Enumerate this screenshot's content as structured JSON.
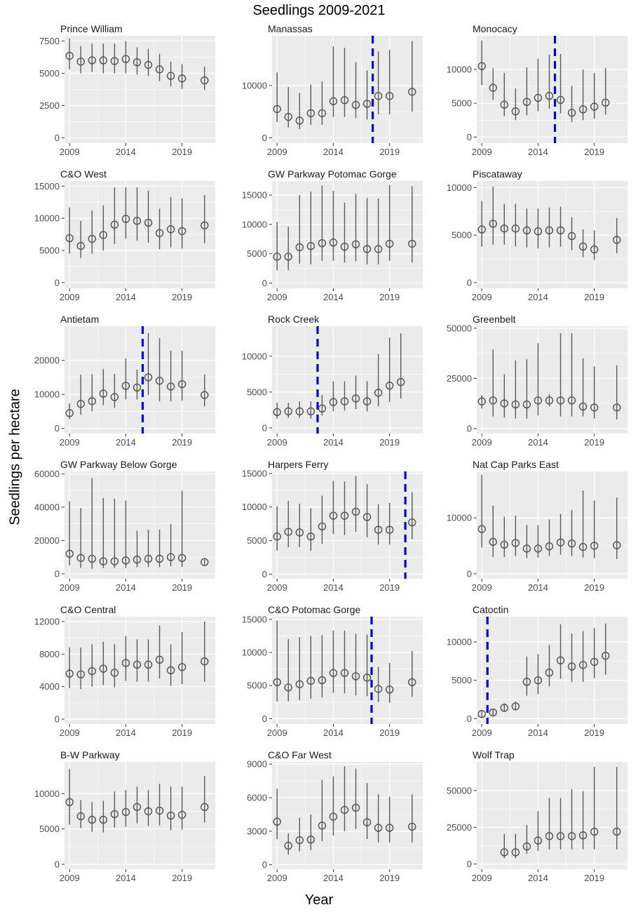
{
  "figure": {
    "title": "Seedlings 2009-2021",
    "xlabel": "Year",
    "ylabel": "Seedlings per hectare",
    "colors": {
      "panel_bg": "#ebebeb",
      "grid": "#ffffff",
      "point": "#595959",
      "cutoff_line": "#0000cc",
      "axis_text": "#4d4d4d"
    }
  },
  "chart_data": [
    {
      "type": "scatter",
      "title": "Prince William",
      "x_ticks": [
        2009,
        2014,
        2019
      ],
      "y_ticks": [
        0,
        2500,
        5000,
        7500
      ],
      "ylim": [
        -400,
        7900
      ],
      "x": [
        2009,
        2010,
        2011,
        2012,
        2013,
        2014,
        2015,
        2016,
        2017,
        2018,
        2019,
        2021
      ],
      "y": [
        6350,
        5900,
        6000,
        6000,
        5950,
        6100,
        5850,
        5650,
        5300,
        4800,
        4600,
        4450
      ],
      "lo": [
        5300,
        5000,
        5100,
        5000,
        5000,
        5000,
        4900,
        4800,
        4400,
        4000,
        3800,
        3700
      ],
      "hi": [
        7700,
        7100,
        7300,
        7300,
        7300,
        7500,
        7000,
        6900,
        6500,
        5900,
        5700,
        5500
      ]
    },
    {
      "type": "scatter",
      "title": "Manassas",
      "x_ticks": [
        2009,
        2014,
        2019
      ],
      "y_ticks": [
        0,
        10000
      ],
      "ylim": [
        -1000,
        19500
      ],
      "x": [
        2009,
        2010,
        2011,
        2012,
        2013,
        2014,
        2015,
        2016,
        2017,
        2018,
        2019,
        2021
      ],
      "y": [
        5500,
        4000,
        3300,
        4700,
        4700,
        7000,
        7200,
        6300,
        6500,
        8000,
        8000,
        8800
      ],
      "lo": [
        3000,
        2000,
        1700,
        2500,
        2500,
        4000,
        4000,
        3800,
        3500,
        4500,
        4500,
        5000
      ],
      "hi": [
        12500,
        9700,
        8600,
        10200,
        10800,
        17500,
        17200,
        14500,
        12900,
        16500,
        16800,
        18500
      ],
      "cutoff_year": 2017.5
    },
    {
      "type": "scatter",
      "title": "Monocacy",
      "x_ticks": [
        2009,
        2014,
        2019
      ],
      "y_ticks": [
        0,
        5000,
        10000
      ],
      "ylim": [
        -900,
        15000
      ],
      "x": [
        2009,
        2010,
        2011,
        2012,
        2013,
        2014,
        2015,
        2016,
        2017,
        2018,
        2019,
        2020
      ],
      "y": [
        10500,
        7300,
        4800,
        3800,
        5200,
        5800,
        6100,
        5500,
        3600,
        4100,
        4500,
        5100
      ],
      "lo": [
        7700,
        5500,
        3100,
        2500,
        3200,
        3800,
        4200,
        3500,
        2200,
        2500,
        2700,
        3300
      ],
      "hi": [
        14300,
        10200,
        9500,
        7200,
        10300,
        11600,
        12200,
        12300,
        7600,
        10000,
        9500,
        10200
      ],
      "cutoff_year": 2015.5
    },
    {
      "type": "scatter",
      "title": "C&O West",
      "x_ticks": [
        2009,
        2014,
        2019
      ],
      "y_ticks": [
        0,
        5000,
        10000,
        15000
      ],
      "ylim": [
        -900,
        15800
      ],
      "x": [
        2009,
        2010,
        2011,
        2012,
        2013,
        2014,
        2015,
        2016,
        2017,
        2018,
        2019,
        2021
      ],
      "y": [
        6900,
        5700,
        6800,
        7400,
        9000,
        9900,
        9600,
        9300,
        7700,
        8300,
        8000,
        8900
      ],
      "lo": [
        4500,
        3800,
        4500,
        5000,
        6000,
        6800,
        6500,
        6200,
        5200,
        5500,
        5300,
        6100
      ],
      "hi": [
        11700,
        9600,
        11200,
        12000,
        14800,
        14800,
        14800,
        14300,
        11500,
        13300,
        13100,
        13600
      ]
    },
    {
      "type": "scatter",
      "title": "GW Parkway Potomac Gorge",
      "x_ticks": [
        2009,
        2014,
        2019
      ],
      "y_ticks": [
        0,
        5000,
        10000,
        15000
      ],
      "ylim": [
        -900,
        17400
      ],
      "x": [
        2009,
        2010,
        2011,
        2012,
        2013,
        2014,
        2015,
        2016,
        2017,
        2018,
        2019,
        2021
      ],
      "y": [
        4500,
        4500,
        6100,
        6300,
        6800,
        6900,
        6200,
        6600,
        5800,
        5800,
        6700,
        6700
      ],
      "lo": [
        2200,
        2200,
        3300,
        3200,
        3800,
        3800,
        3500,
        3700,
        3200,
        3200,
        3800,
        3500
      ],
      "hi": [
        10400,
        9600,
        15000,
        15600,
        16600,
        15700,
        13700,
        15200,
        14500,
        14400,
        16700,
        16500
      ]
    },
    {
      "type": "scatter",
      "title": "Piscataway",
      "x_ticks": [
        2009,
        2014,
        2019
      ],
      "y_ticks": [
        0,
        5000,
        10000
      ],
      "ylim": [
        -600,
        10700
      ],
      "x": [
        2009,
        2010,
        2011,
        2012,
        2013,
        2014,
        2015,
        2016,
        2017,
        2018,
        2019,
        2021
      ],
      "y": [
        5600,
        6200,
        5700,
        5700,
        5500,
        5400,
        5500,
        5500,
        4900,
        3800,
        3500,
        4500
      ],
      "lo": [
        3800,
        4000,
        4000,
        3800,
        3700,
        3600,
        3700,
        3800,
        3400,
        2700,
        2400,
        3100
      ],
      "hi": [
        8600,
        10100,
        8300,
        8300,
        7800,
        7800,
        7900,
        8000,
        6900,
        5600,
        5500,
        6800
      ]
    },
    {
      "type": "scatter",
      "title": "Antietam",
      "x_ticks": [
        2009,
        2014,
        2019
      ],
      "y_ticks": [
        0,
        10000,
        20000
      ],
      "ylim": [
        -1500,
        30000
      ],
      "x": [
        2009,
        2010,
        2011,
        2012,
        2013,
        2014,
        2015,
        2016,
        2017,
        2018,
        2019,
        2021
      ],
      "y": [
        4500,
        7200,
        8000,
        10200,
        9200,
        12500,
        12000,
        15000,
        14000,
        12300,
        13000,
        9800
      ],
      "lo": [
        2700,
        4000,
        5000,
        6800,
        6000,
        8500,
        8500,
        9800,
        8000,
        8000,
        8200,
        6500
      ],
      "hi": [
        7300,
        15800,
        15900,
        17500,
        16000,
        20500,
        17300,
        28000,
        26500,
        22800,
        22800,
        15800
      ],
      "cutoff_year": 2015.5
    },
    {
      "type": "scatter",
      "title": "Rock Creek",
      "x_ticks": [
        2009,
        2014,
        2019
      ],
      "y_ticks": [
        0,
        5000,
        10000
      ],
      "ylim": [
        -800,
        14200
      ],
      "x": [
        2009,
        2010,
        2011,
        2012,
        2013,
        2014,
        2015,
        2016,
        2017,
        2018,
        2019,
        2020
      ],
      "y": [
        2200,
        2300,
        2300,
        2300,
        2700,
        3600,
        3700,
        4100,
        3700,
        4900,
        5900,
        6400
      ],
      "lo": [
        1300,
        1400,
        1400,
        1300,
        1700,
        2300,
        2400,
        2600,
        2300,
        3000,
        3600,
        4100
      ],
      "hi": [
        3500,
        3500,
        3700,
        3700,
        4600,
        6500,
        6500,
        7300,
        6500,
        10300,
        12600,
        13200
      ],
      "cutoff_year": 2012.6
    },
    {
      "type": "scatter",
      "title": "Greenbelt",
      "x_ticks": [
        2009,
        2014,
        2019
      ],
      "y_ticks": [
        0,
        25000,
        50000
      ],
      "ylim": [
        -2500,
        51000
      ],
      "x": [
        2009,
        2010,
        2011,
        2012,
        2013,
        2014,
        2015,
        2016,
        2017,
        2018,
        2019,
        2021
      ],
      "y": [
        13500,
        14000,
        12500,
        12000,
        12000,
        14000,
        14000,
        14000,
        14000,
        11000,
        10500,
        10500
      ],
      "lo": [
        10000,
        6000,
        5500,
        5000,
        5000,
        6500,
        11000,
        6000,
        6000,
        6000,
        5000,
        4500
      ],
      "hi": [
        16500,
        39500,
        27000,
        34000,
        34500,
        42500,
        17000,
        47500,
        47500,
        35000,
        31000,
        31500
      ]
    },
    {
      "type": "scatter",
      "title": "GW Parkway Below Gorge",
      "x_ticks": [
        2009,
        2014,
        2019
      ],
      "y_ticks": [
        0,
        20000,
        40000,
        60000
      ],
      "ylim": [
        -3000,
        61500
      ],
      "x": [
        2009,
        2010,
        2011,
        2012,
        2013,
        2014,
        2015,
        2016,
        2017,
        2018,
        2019,
        2021
      ],
      "y": [
        12000,
        9500,
        9000,
        7500,
        7500,
        8000,
        8500,
        9000,
        9000,
        10000,
        9500,
        7000
      ],
      "lo": [
        5000,
        3500,
        3000,
        3500,
        3500,
        3500,
        4000,
        4000,
        4000,
        4500,
        4000,
        5500
      ],
      "hi": [
        43500,
        39500,
        57500,
        45500,
        45000,
        44000,
        26000,
        26500,
        26500,
        30000,
        50000,
        9000
      ]
    },
    {
      "type": "scatter",
      "title": "Harpers Ferry",
      "x_ticks": [
        2009,
        2014,
        2019
      ],
      "y_ticks": [
        0,
        5000,
        10000,
        15000
      ],
      "ylim": [
        -700,
        15300
      ],
      "x": [
        2009,
        2010,
        2011,
        2012,
        2013,
        2014,
        2015,
        2016,
        2017,
        2018,
        2019,
        2021
      ],
      "y": [
        5600,
        6300,
        6200,
        5600,
        7100,
        8700,
        8700,
        9300,
        8500,
        6600,
        6600,
        7700
      ],
      "lo": [
        3500,
        4000,
        4000,
        3500,
        4500,
        6000,
        5800,
        6300,
        5500,
        4400,
        4400,
        5200
      ],
      "hi": [
        10100,
        10900,
        10500,
        9800,
        11700,
        13900,
        13800,
        14600,
        13400,
        10400,
        10600,
        12200
      ],
      "cutoff_year": 2020.4
    },
    {
      "type": "scatter",
      "title": "Nat Cap Parks East",
      "x_ticks": [
        2009,
        2014,
        2019
      ],
      "y_ticks": [
        0,
        10000
      ],
      "ylim": [
        -900,
        18300
      ],
      "x": [
        2009,
        2010,
        2011,
        2012,
        2013,
        2014,
        2015,
        2016,
        2017,
        2018,
        2019,
        2021
      ],
      "y": [
        8000,
        5700,
        5200,
        5500,
        4500,
        4500,
        4900,
        5600,
        5400,
        4800,
        5000,
        5100
      ],
      "lo": [
        4700,
        3000,
        3000,
        3200,
        2800,
        2900,
        3200,
        3400,
        3200,
        2900,
        2800,
        2600
      ],
      "hi": [
        17700,
        12200,
        10200,
        10400,
        8700,
        8700,
        9700,
        10700,
        11400,
        14900,
        13100,
        13600
      ]
    },
    {
      "type": "scatter",
      "title": "C&O Central",
      "x_ticks": [
        2009,
        2014,
        2019
      ],
      "y_ticks": [
        0,
        4000,
        8000,
        12000
      ],
      "ylim": [
        -600,
        12600
      ],
      "x": [
        2009,
        2010,
        2011,
        2012,
        2013,
        2014,
        2015,
        2016,
        2017,
        2018,
        2019,
        2021
      ],
      "y": [
        5600,
        5500,
        5900,
        6200,
        5700,
        6900,
        6700,
        6700,
        7300,
        6000,
        6400,
        7100
      ],
      "lo": [
        3800,
        3700,
        4000,
        4200,
        3900,
        4700,
        4600,
        4600,
        5000,
        4100,
        4300,
        4600
      ],
      "hi": [
        8800,
        8800,
        9200,
        9500,
        9200,
        10200,
        9800,
        9800,
        11500,
        9200,
        10700,
        12000
      ]
    },
    {
      "type": "scatter",
      "title": "C&O Potomac Gorge",
      "x_ticks": [
        2009,
        2014,
        2019
      ],
      "y_ticks": [
        0,
        5000,
        10000,
        15000
      ],
      "ylim": [
        -800,
        15400
      ],
      "x": [
        2009,
        2010,
        2011,
        2012,
        2013,
        2014,
        2015,
        2016,
        2017,
        2018,
        2019,
        2021
      ],
      "y": [
        5500,
        4700,
        5200,
        5700,
        5800,
        6900,
        6900,
        6400,
        6200,
        4500,
        4400,
        5500
      ],
      "lo": [
        2600,
        2600,
        2800,
        3000,
        3200,
        3900,
        3800,
        3500,
        3400,
        2500,
        2400,
        3300
      ],
      "hi": [
        14800,
        12000,
        12300,
        12500,
        12600,
        13300,
        13300,
        12800,
        12700,
        7800,
        8400,
        10200
      ],
      "cutoff_year": 2017.4
    },
    {
      "type": "scatter",
      "title": "Catoctin",
      "x_ticks": [
        2009,
        2014,
        2019
      ],
      "y_ticks": [
        0,
        5000,
        10000
      ],
      "ylim": [
        -700,
        13300
      ],
      "x": [
        2009,
        2010,
        2011,
        2012,
        2013,
        2014,
        2015,
        2016,
        2017,
        2018,
        2019,
        2020
      ],
      "y": [
        600,
        800,
        1400,
        1600,
        4800,
        5000,
        6000,
        7600,
        6800,
        7000,
        7400,
        8200
      ],
      "lo": [
        200,
        300,
        900,
        1100,
        3000,
        3200,
        4200,
        5200,
        4800,
        4800,
        5300,
        5700
      ],
      "hi": [
        1000,
        1300,
        2000,
        2200,
        8100,
        8400,
        9600,
        12300,
        11100,
        11400,
        11800,
        12400
      ],
      "cutoff_year": 2009.5
    },
    {
      "type": "scatter",
      "title": "B-W Parkway",
      "x_ticks": [
        2009,
        2014,
        2019
      ],
      "y_ticks": [
        0,
        5000,
        10000
      ],
      "ylim": [
        -700,
        14500
      ],
      "x": [
        2009,
        2010,
        2011,
        2012,
        2013,
        2014,
        2015,
        2016,
        2017,
        2018,
        2019,
        2021
      ],
      "y": [
        8800,
        6800,
        6300,
        6300,
        7100,
        7400,
        8100,
        7500,
        7600,
        6900,
        7000,
        8100
      ],
      "lo": [
        5600,
        5100,
        4600,
        4500,
        5200,
        5300,
        5800,
        5400,
        5500,
        4800,
        4900,
        5900
      ],
      "hi": [
        13500,
        9100,
        8800,
        9000,
        10300,
        10500,
        11000,
        10500,
        11400,
        11000,
        11000,
        12500
      ]
    },
    {
      "type": "scatter",
      "title": "C&O Far West",
      "x_ticks": [
        2009,
        2014,
        2019
      ],
      "y_ticks": [
        0,
        3000,
        6000,
        9000
      ],
      "ylim": [
        -400,
        9200
      ],
      "x": [
        2009,
        2010,
        2011,
        2012,
        2013,
        2014,
        2015,
        2016,
        2017,
        2018,
        2019,
        2021
      ],
      "y": [
        3850,
        1700,
        2200,
        2250,
        3500,
        4300,
        4900,
        5100,
        3800,
        3300,
        3300,
        3400
      ],
      "lo": [
        2300,
        900,
        1200,
        1300,
        2100,
        2600,
        3000,
        3200,
        2300,
        2000,
        2000,
        2000
      ],
      "hi": [
        6800,
        2800,
        4200,
        4500,
        7600,
        7900,
        8800,
        8600,
        7300,
        6300,
        6100,
        6300
      ]
    },
    {
      "type": "scatter",
      "title": "Wolf Trap",
      "x_ticks": [
        2009,
        2014,
        2019
      ],
      "y_ticks": [
        0,
        25000,
        50000
      ],
      "ylim": [
        -3500,
        69500
      ],
      "x": [
        2011,
        2012,
        2013,
        2014,
        2015,
        2016,
        2017,
        2018,
        2019,
        2021
      ],
      "y": [
        8000,
        8000,
        12000,
        16000,
        19000,
        19000,
        19000,
        19500,
        22000,
        22000
      ],
      "lo": [
        4000,
        4000,
        7000,
        9000,
        10000,
        10000,
        10000,
        10000,
        10000,
        10000
      ],
      "hi": [
        20500,
        20500,
        26500,
        36000,
        45000,
        45000,
        51000,
        49500,
        66000,
        66000
      ]
    }
  ]
}
